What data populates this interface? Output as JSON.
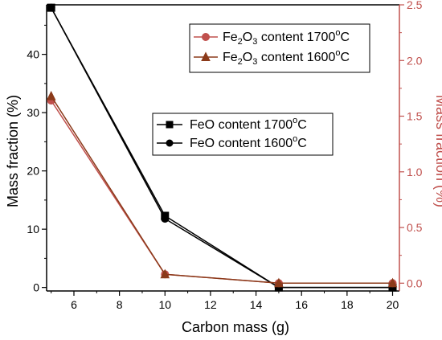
{
  "chart_data": {
    "type": "line",
    "xlabel": "Carbon mass (g)",
    "ylabel_left": "Mass fraction (%)",
    "ylabel_right": "Mass fraction (%)",
    "x_ticks": [
      6,
      8,
      10,
      12,
      14,
      16,
      18,
      20
    ],
    "xlim": [
      4.8,
      20.3
    ],
    "y_left_ticks": [
      0,
      10,
      20,
      30,
      40
    ],
    "ylim_left": [
      -0.6,
      48.5
    ],
    "y_right_ticks": [
      0.0,
      0.5,
      1.0,
      1.5,
      2.0,
      2.5
    ],
    "ylim_right": [
      -0.07,
      2.5
    ],
    "axis_colors": {
      "left": "#000000",
      "right": "#c0504d",
      "fe2o3_series": "#c0504d",
      "feo_series": "#000000"
    },
    "x": [
      5,
      10,
      15,
      20
    ],
    "series": [
      {
        "axis": "left",
        "marker": "square",
        "color": "#000000",
        "legend_label": {
          "base": "FeO content 1700",
          "sup": "o",
          "unit": "C"
        },
        "values": [
          48,
          12.3,
          0,
          0
        ]
      },
      {
        "axis": "left",
        "marker": "circle",
        "color": "#000000",
        "legend_label": {
          "base": "FeO content 1600",
          "sup": "o",
          "unit": "C"
        },
        "values": [
          48,
          11.8,
          0,
          0
        ]
      },
      {
        "axis": "right",
        "marker": "circle",
        "color": "#c0504d",
        "legend_label": {
          "pre": "Fe",
          "sub1": "2",
          "mid": "O",
          "sub2": "3",
          "post": " content 1700",
          "sup": "o",
          "unit": "C"
        },
        "values": [
          1.64,
          0.08,
          0.0,
          0.0
        ]
      },
      {
        "axis": "right",
        "marker": "triangle",
        "color": "#8b3a1a",
        "legend_label": {
          "pre": "Fe",
          "sub1": "2",
          "mid": "O",
          "sub2": "3",
          "post": "  content 1600",
          "sup": "o",
          "unit": "C"
        },
        "values": [
          1.68,
          0.08,
          0.0,
          0.0
        ]
      }
    ],
    "legends": [
      {
        "placement": "top-center",
        "series_indices": [
          2,
          3
        ]
      },
      {
        "placement": "center",
        "series_indices": [
          0,
          1
        ]
      }
    ]
  }
}
